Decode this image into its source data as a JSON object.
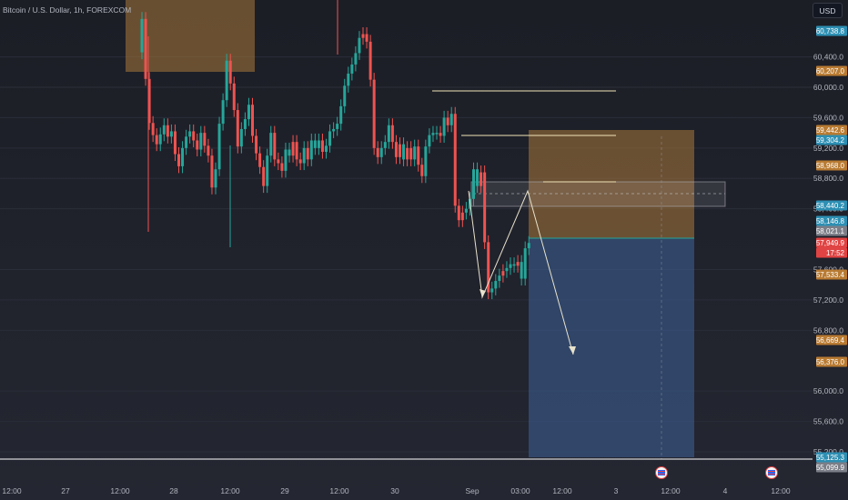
{
  "header": {
    "symbol_title": "Bitcoin / U.S. Dollar, 1h, FOREXCOM",
    "currency_button": "USD"
  },
  "price_scale": {
    "gridlines": [
      "60,400.0",
      "60,000.0",
      "59,600.0",
      "59,200.0",
      "58,800.0",
      "57,200.0",
      "56,800.0",
      "56,000.0",
      "55,600.0",
      "55,200.0"
    ],
    "partial_labels": [
      "58,400.0",
      "57,600.0"
    ]
  },
  "price_tags": [
    {
      "text": "60,738.8",
      "kind": "blue"
    },
    {
      "text": "60,207.0",
      "kind": "orange"
    },
    {
      "text": "59,442.6",
      "kind": "orange"
    },
    {
      "text": "59,304.2",
      "kind": "blue"
    },
    {
      "text": "58,968.0",
      "kind": "orange"
    },
    {
      "text": "58,440.2",
      "kind": "blue"
    },
    {
      "text": "58,146.8",
      "kind": "blue"
    },
    {
      "text": "58,021.1",
      "kind": "grey"
    },
    {
      "text": "57,949.9",
      "kind": "red"
    },
    {
      "text": "17:52",
      "kind": "red"
    },
    {
      "text": "57,533.4",
      "kind": "orange"
    },
    {
      "text": "56,669.4",
      "kind": "orange"
    },
    {
      "text": "56,376.0",
      "kind": "orange"
    },
    {
      "text": "55,125.3",
      "kind": "blue"
    },
    {
      "text": "55,099.9",
      "kind": "grey"
    }
  ],
  "time_axis": [
    "12:00",
    "27",
    "12:00",
    "28",
    "12:00",
    "29",
    "12:00",
    "30",
    "Sep",
    "03:00",
    "12:00",
    "3",
    "12:00",
    "4",
    "12:00"
  ],
  "event_icons": [
    "flag-icon",
    "flag-icon"
  ],
  "colors": {
    "up": "#26a69a",
    "down": "#ef5350",
    "supply_zone": "#a9783a",
    "target_zone": "#3a5a8c",
    "line": "#f0e4b8"
  },
  "candles": [
    [
      "u",
      60460,
      60900
    ],
    [
      "d",
      60900,
      60110
    ],
    [
      "d",
      60110,
      59530
    ],
    [
      "d",
      59530,
      59370
    ],
    [
      "d",
      59370,
      59250
    ],
    [
      "u",
      59250,
      59380
    ],
    [
      "u",
      59380,
      59500
    ],
    [
      "d",
      59500,
      59350
    ],
    [
      "u",
      59350,
      59420
    ],
    [
      "d",
      59420,
      59120
    ],
    [
      "d",
      59120,
      58960
    ],
    [
      "u",
      58960,
      59200
    ],
    [
      "u",
      59200,
      59350
    ],
    [
      "u",
      59350,
      59420
    ],
    [
      "d",
      59420,
      59300
    ],
    [
      "d",
      59300,
      59180
    ],
    [
      "u",
      59180,
      59400
    ],
    [
      "d",
      59400,
      59230
    ],
    [
      "d",
      59230,
      59100
    ],
    [
      "d",
      59100,
      58680
    ],
    [
      "u",
      58680,
      58920
    ],
    [
      "u",
      58920,
      59520
    ],
    [
      "u",
      59520,
      59830
    ],
    [
      "u",
      59830,
      60350
    ],
    [
      "d",
      60350,
      60050
    ],
    [
      "d",
      60050,
      59700
    ],
    [
      "d",
      59700,
      59220
    ],
    [
      "u",
      59220,
      59450
    ],
    [
      "u",
      59450,
      59580
    ],
    [
      "u",
      59580,
      59770
    ],
    [
      "d",
      59770,
      59360
    ],
    [
      "d",
      59360,
      59130
    ],
    [
      "d",
      59130,
      58950
    ],
    [
      "d",
      58950,
      58700
    ],
    [
      "u",
      58700,
      59100
    ],
    [
      "u",
      59100,
      59400
    ],
    [
      "d",
      59400,
      59050
    ],
    [
      "d",
      59050,
      59000
    ],
    [
      "d",
      59000,
      58900
    ],
    [
      "u",
      58900,
      59180
    ],
    [
      "u",
      59180,
      59100
    ],
    [
      "d",
      59100,
      59280
    ],
    [
      "d",
      59280,
      59050
    ],
    [
      "d",
      59050,
      59000
    ],
    [
      "u",
      59000,
      59200
    ],
    [
      "d",
      59200,
      59050
    ],
    [
      "u",
      59050,
      59300
    ],
    [
      "u",
      59300,
      59200
    ],
    [
      "u",
      59200,
      59300
    ],
    [
      "d",
      59300,
      59150
    ],
    [
      "u",
      59150,
      59230
    ],
    [
      "u",
      59230,
      59420
    ],
    [
      "u",
      59420,
      59450
    ],
    [
      "u",
      59450,
      59520
    ],
    [
      "u",
      59520,
      59750
    ],
    [
      "u",
      59750,
      60020
    ],
    [
      "u",
      60020,
      60180
    ],
    [
      "u",
      60180,
      60300
    ],
    [
      "u",
      60300,
      60450
    ],
    [
      "u",
      60450,
      60650
    ],
    [
      "d",
      60650,
      60700
    ],
    [
      "d",
      60700,
      60600
    ],
    [
      "d",
      60600,
      60100
    ],
    [
      "d",
      60100,
      59200
    ],
    [
      "d",
      59200,
      59080
    ],
    [
      "u",
      59080,
      59200
    ],
    [
      "u",
      59200,
      59280
    ],
    [
      "u",
      59280,
      59500
    ],
    [
      "d",
      59500,
      59280
    ],
    [
      "d",
      59280,
      59080
    ],
    [
      "d",
      59080,
      59250
    ],
    [
      "u",
      59250,
      59050
    ],
    [
      "d",
      59050,
      59200
    ],
    [
      "d",
      59200,
      59050
    ],
    [
      "u",
      59050,
      59220
    ],
    [
      "d",
      59220,
      58980
    ],
    [
      "d",
      58980,
      58830
    ],
    [
      "u",
      58830,
      59220
    ],
    [
      "u",
      59220,
      59370
    ],
    [
      "u",
      59370,
      59400
    ],
    [
      "u",
      59400,
      59400
    ],
    [
      "d",
      59400,
      59360
    ],
    [
      "u",
      59360,
      59600
    ],
    [
      "d",
      59600,
      59500
    ],
    [
      "u",
      59500,
      59650
    ],
    [
      "d",
      59650,
      58440
    ],
    [
      "d",
      58440,
      58250
    ],
    [
      "d",
      58250,
      58350
    ],
    [
      "u",
      58350,
      58400
    ],
    [
      "u",
      58400,
      58530
    ],
    [
      "u",
      58530,
      58920
    ],
    [
      "u",
      58920,
      58700
    ],
    [
      "d",
      58700,
      58880
    ],
    [
      "d",
      58880,
      57960
    ],
    [
      "d",
      57960,
      57300
    ],
    [
      "u",
      57300,
      57350
    ],
    [
      "u",
      57350,
      57450
    ],
    [
      "u",
      57450,
      57520
    ],
    [
      "d",
      57520,
      57580
    ],
    [
      "u",
      57580,
      57620
    ],
    [
      "u",
      57620,
      57670
    ],
    [
      "u",
      57670,
      57650
    ],
    [
      "d",
      57650,
      57700
    ],
    [
      "u",
      57700,
      57480
    ],
    [
      "u",
      57480,
      57880
    ],
    [
      "u",
      57880,
      57950
    ]
  ]
}
